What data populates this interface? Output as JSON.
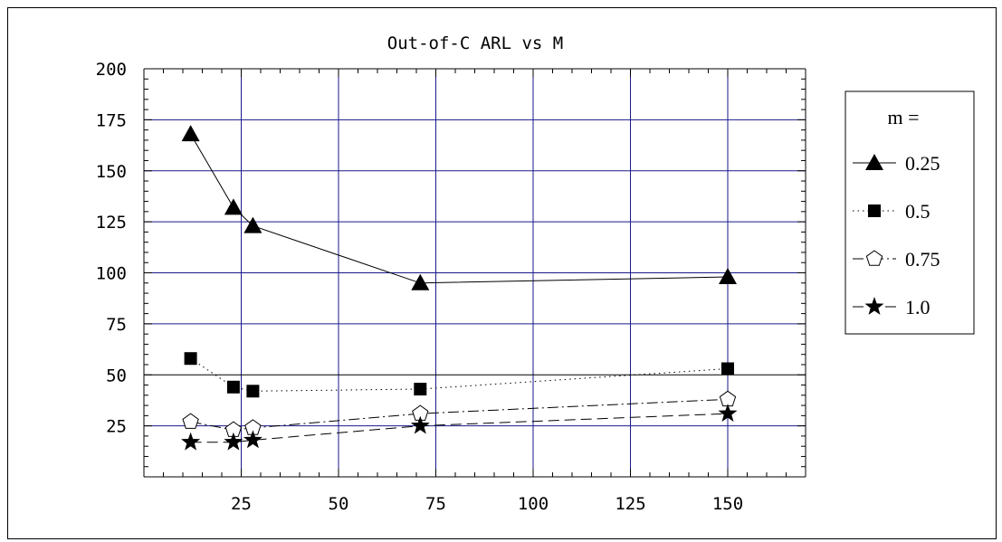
{
  "chart_data": {
    "type": "line",
    "title": "Out-of-C ARL vs M",
    "xlabel": "",
    "ylabel": "",
    "xlim": [
      0,
      170
    ],
    "ylim": [
      0,
      200
    ],
    "xticks": [
      25,
      50,
      75,
      100,
      125,
      150
    ],
    "yticks": [
      25,
      50,
      75,
      100,
      125,
      150,
      175,
      200
    ],
    "grid": true,
    "legend_position": "right",
    "legend_title": "m =",
    "x": [
      12,
      23,
      28,
      71,
      150
    ],
    "series": [
      {
        "name": "0.25",
        "values": [
          168,
          132,
          123,
          95,
          98
        ],
        "marker": "triangle",
        "dash": "solid",
        "color": "#000000"
      },
      {
        "name": "0.5",
        "values": [
          58,
          44,
          42,
          43,
          53
        ],
        "marker": "square",
        "dash": "dotted",
        "color": "#000000"
      },
      {
        "name": "0.75",
        "values": [
          27,
          23,
          24,
          31,
          38
        ],
        "marker": "pentagon",
        "dash": "dashdot",
        "color": "#000000"
      },
      {
        "name": "1.0",
        "values": [
          17,
          17,
          18,
          25,
          31
        ],
        "marker": "star",
        "dash": "dashed",
        "color": "#000000"
      }
    ],
    "colors": {
      "gridline": "#1a1a8c",
      "axis": "#000000",
      "data_line": "#000000"
    }
  }
}
